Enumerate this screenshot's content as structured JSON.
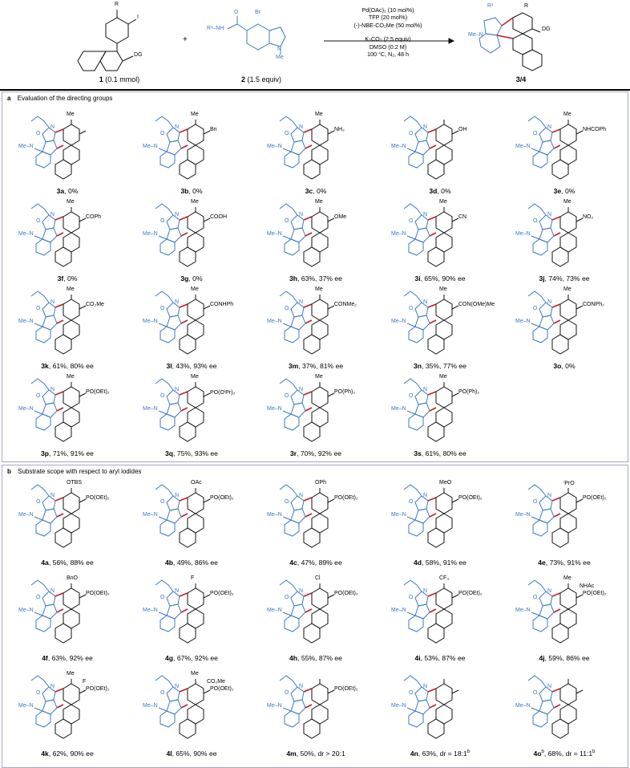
{
  "header": {
    "reactant1": {
      "number": "1",
      "amount": "(0.1 mmol)",
      "sub_r": "R",
      "sub_i": "I",
      "sub_dg": "DG"
    },
    "reactant2": {
      "number": "2",
      "amount": "(1.5 equiv)",
      "sub_br": "Br",
      "sub_o": "O",
      "sub_nh": "R¹–NH",
      "sub_n": "N",
      "sub_me": "Me"
    },
    "plus": "+",
    "conditions": [
      "Pd(OAc)₂ (10 mol%)",
      "TFP (20 mol%)",
      "(-)-NBE-CO₂Me (50 mol%)",
      "K₂CO₃ (2.5 equiv)",
      "DMSO (0.2 M)",
      "100 °C, N₂, 48 h"
    ],
    "product": {
      "number": "3/4",
      "sub_r1": "R¹",
      "sub_r": "R",
      "sub_dg": "DG",
      "sub_menn": "Me–N"
    }
  },
  "panel_a": {
    "letter": "a",
    "title": "Evaluation of the directing groups",
    "items": [
      {
        "id": "3a",
        "text": ", 0%",
        "dg": "",
        "top": "Me"
      },
      {
        "id": "3b",
        "text": ", 0%",
        "dg": "Bn",
        "top": "Me"
      },
      {
        "id": "3c",
        "text": ", 0%",
        "dg": "NH₂",
        "top": "Me"
      },
      {
        "id": "3d",
        "text": ", 0%",
        "dg": "OH",
        "top": ""
      },
      {
        "id": "3e",
        "text": ", 0%",
        "dg": "NHCOPh",
        "top": "Me"
      },
      {
        "id": "3f",
        "text": ", 0%",
        "dg": "COPh",
        "top": "Me"
      },
      {
        "id": "3g",
        "text": ", 0%",
        "dg": "COOH",
        "top": "Me"
      },
      {
        "id": "3h",
        "text": ", 63%, 37% ee",
        "dg": "OMe",
        "top": "Me"
      },
      {
        "id": "3i",
        "text": ", 65%, 90% ee",
        "dg": "CN",
        "top": "Me"
      },
      {
        "id": "3j",
        "text": ", 74%, 73% ee",
        "dg": "NO₂",
        "top": "Me"
      },
      {
        "id": "3k",
        "text": ", 61%, 80% ee",
        "dg": "CO₂Me",
        "top": "Me"
      },
      {
        "id": "3l",
        "text": ", 43%, 93% ee",
        "dg": "CONHPh",
        "top": "Me"
      },
      {
        "id": "3m",
        "text": ", 37%, 81% ee",
        "dg": "CONMe₂",
        "top": "Me"
      },
      {
        "id": "3n",
        "text": ", 35%, 77% ee",
        "dg": "CON(OMe)Me",
        "top": "Me"
      },
      {
        "id": "3o",
        "text": ", 0%",
        "dg": "CONPh₂",
        "top": "Me"
      },
      {
        "id": "3p",
        "text": ", 71%, 91% ee",
        "dg": "PO(OEt)₂",
        "top": "Me"
      },
      {
        "id": "3q",
        "text": ", 75%, 93% ee",
        "dg": "PO(OⁱPr)₂",
        "top": "Me"
      },
      {
        "id": "3r",
        "text": ", 70%, 92% ee",
        "dg": "PO(Ph)₂",
        "top": "Me"
      },
      {
        "id": "3s",
        "text": ", 61%, 80% ee",
        "dg": "PO(Ph)₂",
        "top": "Me"
      }
    ]
  },
  "panel_b": {
    "letter": "b",
    "title": "Substrate scope with respect to aryl iodides",
    "items": [
      {
        "id": "4a",
        "text": ", 56%, 88% ee",
        "dg": "PO(OEt)₂",
        "top": "OTBS"
      },
      {
        "id": "4b",
        "text": ", 49%, 86% ee",
        "dg": "PO(OEt)₂",
        "top": "OAc"
      },
      {
        "id": "4c",
        "text": ", 47%, 89% ee",
        "dg": "PO(OEt)₂",
        "top": "OPh"
      },
      {
        "id": "4d",
        "text": ", 58%, 91% ee",
        "dg": "PO(OEt)₂",
        "top": "MeO"
      },
      {
        "id": "4e",
        "text": ", 73%, 91% ee",
        "dg": "PO(OEt)₂",
        "top": "ⁱPrO"
      },
      {
        "id": "4f",
        "text": ", 63%, 92% ee",
        "dg": "PO(OEt)₂",
        "top": "BnO"
      },
      {
        "id": "4g",
        "text": ", 67%, 92% ee",
        "dg": "PO(OEt)₂",
        "top": "F"
      },
      {
        "id": "4h",
        "text": ", 55%, 87% ee",
        "dg": "PO(OEt)₂",
        "top": "Cl"
      },
      {
        "id": "4i",
        "text": ", 53%, 87% ee",
        "dg": "PO(OEt)₂",
        "top": "CF₃"
      },
      {
        "id": "4j",
        "text": ", 59%, 86% ee",
        "dg": "PO(OEt)₂",
        "top": "Me",
        "extra": "NHAc"
      },
      {
        "id": "4k",
        "text": ", 62%, 90% ee",
        "dg": "PO(OEt)₂",
        "top": "Me",
        "extra": "F"
      },
      {
        "id": "4l",
        "text": ", 65%, 90% ee",
        "dg": "PO(OEt)₂",
        "top": "Me",
        "extra": "CO₂Me"
      },
      {
        "id": "4m",
        "text": ", 50%, dr > 20:1",
        "dg": "PO(OEt)₂",
        "top": ""
      },
      {
        "id": "4n",
        "text": ", 63%, dr = 18:1",
        "sup": "b",
        "dg": "",
        "top": ""
      },
      {
        "id": "4o",
        "idsup": "b",
        "text": ", 68%, dr = 11:1",
        "sup": "b",
        "dg": "",
        "top": ""
      }
    ]
  },
  "colors": {
    "blue": "#3a78c8",
    "red": "#c8202a",
    "black": "#111111",
    "frame": "#a7a7c9"
  },
  "common_labels": {
    "me": "Me",
    "o": "O",
    "n": "N",
    "men": "Me–N"
  }
}
